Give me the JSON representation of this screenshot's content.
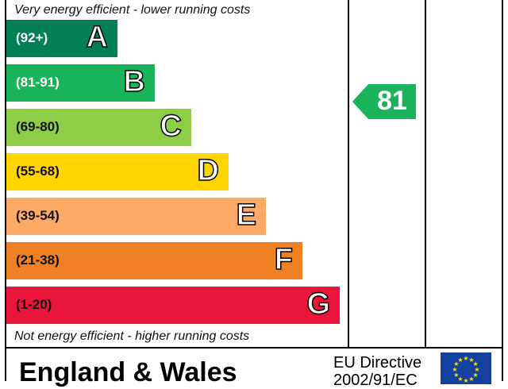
{
  "chart_data": {
    "type": "bar",
    "top_caption": "Very energy efficient - lower running costs",
    "bottom_caption": "Not energy efficient - higher running costs",
    "bands": [
      {
        "letter": "A",
        "range": "(92+)",
        "color": "#008054",
        "text_color": "#ffffff"
      },
      {
        "letter": "B",
        "range": "(81-91)",
        "color": "#19b459",
        "text_color": "#ffffff"
      },
      {
        "letter": "C",
        "range": "(69-80)",
        "color": "#8dce46",
        "text_color": "#111111"
      },
      {
        "letter": "D",
        "range": "(55-68)",
        "color": "#ffd500",
        "text_color": "#111111"
      },
      {
        "letter": "E",
        "range": "(39-54)",
        "color": "#fcaa65",
        "text_color": "#111111"
      },
      {
        "letter": "F",
        "range": "(21-38)",
        "color": "#ef8023",
        "text_color": "#111111"
      },
      {
        "letter": "G",
        "range": "(1-20)",
        "color": "#e9153b",
        "text_color": "#111111"
      }
    ],
    "current_rating": {
      "value": "81",
      "band": "B",
      "color": "#19b459"
    }
  },
  "footer": {
    "region": "England & Wales",
    "directive_line1": "EU Directive",
    "directive_line2": "2002/91/EC"
  }
}
